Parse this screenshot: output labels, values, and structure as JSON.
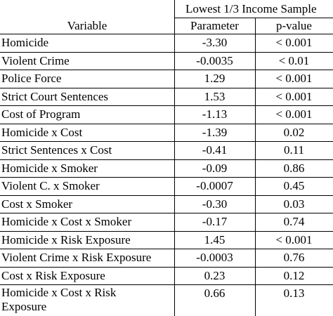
{
  "table": {
    "group_header": "Lowest 1/3 Income Sample",
    "columns": {
      "variable": "Variable",
      "parameter": "Parameter",
      "pvalue": "p-value"
    },
    "rows": [
      {
        "variable": "Homicide",
        "parameter": "-3.30",
        "pvalue": "< 0.001"
      },
      {
        "variable": "Violent Crime",
        "parameter": "-0.0035",
        "pvalue": "< 0.01"
      },
      {
        "variable": "Police Force",
        "parameter": "1.29",
        "pvalue": "< 0.001"
      },
      {
        "variable": "Strict Court Sentences",
        "parameter": "1.53",
        "pvalue": "< 0.001"
      },
      {
        "variable": "Cost of Program",
        "parameter": "-1.13",
        "pvalue": "< 0.001"
      },
      {
        "variable": "Homicide x Cost",
        "parameter": "-1.39",
        "pvalue": "0.02"
      },
      {
        "variable": "Strict Sentences x Cost",
        "parameter": "-0.41",
        "pvalue": "0.11"
      },
      {
        "variable": "Homicide x Smoker",
        "parameter": "-0.09",
        "pvalue": "0.86"
      },
      {
        "variable": "Violent C. x Smoker",
        "parameter": "-0.0007",
        "pvalue": "0.45"
      },
      {
        "variable": "Cost x Smoker",
        "parameter": "-0.30",
        "pvalue": "0.03"
      },
      {
        "variable": "Homicide x Cost x Smoker",
        "parameter": "-0.17",
        "pvalue": "0.74"
      },
      {
        "variable": "Homicide x Risk Exposure",
        "parameter": "1.45",
        "pvalue": "< 0.001"
      },
      {
        "variable": "Violent Crime x Risk Exposure",
        "parameter": "-0.0003",
        "pvalue": "0.76"
      },
      {
        "variable": "Cost x Risk Exposure",
        "parameter": "0.23",
        "pvalue": "0.12"
      },
      {
        "variable": "Homicide x Cost x Risk Exposure",
        "parameter": "0.66",
        "pvalue": "0.13",
        "wrap": "Homicide x Cost x Risk|Exposure"
      }
    ]
  }
}
